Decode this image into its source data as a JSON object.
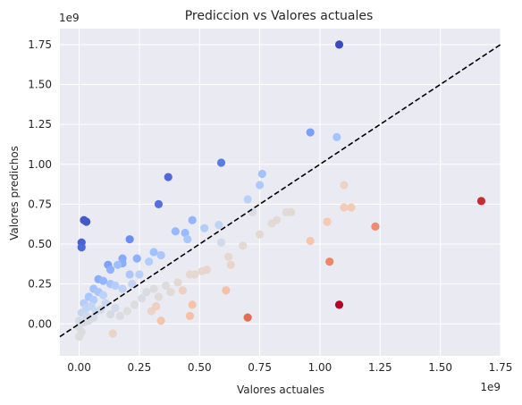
{
  "chart_data": {
    "type": "scatter",
    "title": "Prediccion vs Valores actuales",
    "xlabel": "Valores actuales",
    "ylabel": "Valores predichos",
    "x_offset_text": "1e9",
    "y_offset_text": "1e9",
    "xlim": [
      -0.08,
      1.75
    ],
    "ylim": [
      -0.2,
      1.85
    ],
    "xticks": [
      0,
      0.25,
      0.5,
      0.75,
      1.0,
      1.25,
      1.5,
      1.75
    ],
    "xtick_labels": [
      "0.00",
      "0.25",
      "0.50",
      "0.75",
      "1.00",
      "1.25",
      "1.50",
      "1.75"
    ],
    "yticks": [
      0,
      0.25,
      0.5,
      0.75,
      1.0,
      1.25,
      1.5,
      1.75
    ],
    "ytick_labels": [
      "0.00",
      "0.25",
      "0.50",
      "0.75",
      "1.00",
      "1.25",
      "1.50",
      "1.75"
    ],
    "grid": true,
    "background": "#eaeaf2",
    "reference_line": {
      "style": "dashed",
      "color": "#000000",
      "slope": 1,
      "intercept": 0
    },
    "colormap": "coolwarm",
    "color_by": "residual",
    "points": [
      {
        "x": 1.08,
        "y": 1.75,
        "c": "#3b4cc0"
      },
      {
        "x": 0.96,
        "y": 1.2,
        "c": "#7b9ff9"
      },
      {
        "x": 1.07,
        "y": 1.17,
        "c": "#a5c3fe"
      },
      {
        "x": 0.59,
        "y": 1.01,
        "c": "#5b7ae5"
      },
      {
        "x": 0.37,
        "y": 0.92,
        "c": "#4f69d9"
      },
      {
        "x": 0.76,
        "y": 0.94,
        "c": "#a2c1ff"
      },
      {
        "x": 0.75,
        "y": 0.87,
        "c": "#aec9fc"
      },
      {
        "x": 0.7,
        "y": 0.78,
        "c": "#b9d0f9"
      },
      {
        "x": 0.33,
        "y": 0.75,
        "c": "#5470de"
      },
      {
        "x": 0.02,
        "y": 0.65,
        "c": "#4358cb"
      },
      {
        "x": 0.03,
        "y": 0.64,
        "c": "#4358cb"
      },
      {
        "x": 0.01,
        "y": 0.51,
        "c": "#4961d2"
      },
      {
        "x": 0.01,
        "y": 0.48,
        "c": "#4f69d9"
      },
      {
        "x": 0.47,
        "y": 0.65,
        "c": "#93b5fe"
      },
      {
        "x": 0.4,
        "y": 0.58,
        "c": "#97b8ff"
      },
      {
        "x": 0.44,
        "y": 0.57,
        "c": "#9abbff"
      },
      {
        "x": 0.45,
        "y": 0.53,
        "c": "#aac7fd"
      },
      {
        "x": 0.52,
        "y": 0.6,
        "c": "#b3cdfb"
      },
      {
        "x": 0.58,
        "y": 0.62,
        "c": "#c0d4f5"
      },
      {
        "x": 0.59,
        "y": 0.51,
        "c": "#d1dae9"
      },
      {
        "x": 0.21,
        "y": 0.53,
        "c": "#6a8bef"
      },
      {
        "x": 0.24,
        "y": 0.41,
        "c": "#8caffe"
      },
      {
        "x": 0.18,
        "y": 0.41,
        "c": "#86a9fc"
      },
      {
        "x": 0.18,
        "y": 0.38,
        "c": "#8badfd"
      },
      {
        "x": 0.16,
        "y": 0.37,
        "c": "#9ebeff"
      },
      {
        "x": 0.12,
        "y": 0.37,
        "c": "#7da0f9"
      },
      {
        "x": 0.13,
        "y": 0.34,
        "c": "#8fb1fe"
      },
      {
        "x": 0.31,
        "y": 0.45,
        "c": "#a1c0ff"
      },
      {
        "x": 0.34,
        "y": 0.43,
        "c": "#aac7fd"
      },
      {
        "x": 0.29,
        "y": 0.39,
        "c": "#b2ccfb"
      },
      {
        "x": 0.21,
        "y": 0.31,
        "c": "#a9c6fd"
      },
      {
        "x": 0.25,
        "y": 0.31,
        "c": "#b7cff9"
      },
      {
        "x": 0.08,
        "y": 0.28,
        "c": "#89acfd"
      },
      {
        "x": 0.1,
        "y": 0.27,
        "c": "#94b6ff"
      },
      {
        "x": 0.13,
        "y": 0.25,
        "c": "#a6c4fe"
      },
      {
        "x": 0.06,
        "y": 0.22,
        "c": "#a3c2fe"
      },
      {
        "x": 0.08,
        "y": 0.2,
        "c": "#a9c6fd"
      },
      {
        "x": 0.15,
        "y": 0.24,
        "c": "#b5cdfa"
      },
      {
        "x": 0.18,
        "y": 0.22,
        "c": "#bed2f6"
      },
      {
        "x": 0.22,
        "y": 0.25,
        "c": "#c4d5f3"
      },
      {
        "x": 0.04,
        "y": 0.17,
        "c": "#a7c5fe"
      },
      {
        "x": 0.06,
        "y": 0.15,
        "c": "#b3cdfb"
      },
      {
        "x": 0.1,
        "y": 0.18,
        "c": "#bcd2f7"
      },
      {
        "x": 0.11,
        "y": 0.13,
        "c": "#c9d7f0"
      },
      {
        "x": 0.02,
        "y": 0.13,
        "c": "#b5cdfa"
      },
      {
        "x": 0.03,
        "y": 0.1,
        "c": "#c0d4f5"
      },
      {
        "x": 0.05,
        "y": 0.11,
        "c": "#c3d5f4"
      },
      {
        "x": 0.07,
        "y": 0.08,
        "c": "#ccd9ed"
      },
      {
        "x": 0.09,
        "y": 0.09,
        "c": "#cfdaea"
      },
      {
        "x": 0.01,
        "y": 0.07,
        "c": "#c6d6f1"
      },
      {
        "x": 0.03,
        "y": 0.05,
        "c": "#cedaeb"
      },
      {
        "x": 0.06,
        "y": 0.04,
        "c": "#d4dbe6"
      },
      {
        "x": 0.0,
        "y": 0.02,
        "c": "#d2dbe8"
      },
      {
        "x": 0.02,
        "y": 0.01,
        "c": "#d5dbe5"
      },
      {
        "x": 0.04,
        "y": 0.02,
        "c": "#d7dce3"
      },
      {
        "x": 0.0,
        "y": -0.02,
        "c": "#d9dce1"
      },
      {
        "x": 0.01,
        "y": -0.05,
        "c": "#dadce0"
      },
      {
        "x": 0.0,
        "y": -0.08,
        "c": "#dcdddd"
      },
      {
        "x": 0.13,
        "y": 0.06,
        "c": "#d5dbe5"
      },
      {
        "x": 0.15,
        "y": 0.1,
        "c": "#d2dbe8"
      },
      {
        "x": 0.17,
        "y": 0.05,
        "c": "#dadce0"
      },
      {
        "x": 0.2,
        "y": 0.08,
        "c": "#dcdddd"
      },
      {
        "x": 0.23,
        "y": 0.12,
        "c": "#dbdcde"
      },
      {
        "x": 0.26,
        "y": 0.16,
        "c": "#d9dce1"
      },
      {
        "x": 0.28,
        "y": 0.2,
        "c": "#d7dce3"
      },
      {
        "x": 0.31,
        "y": 0.22,
        "c": "#dddcdc"
      },
      {
        "x": 0.33,
        "y": 0.17,
        "c": "#e0dbd8"
      },
      {
        "x": 0.36,
        "y": 0.24,
        "c": "#dedcdb"
      },
      {
        "x": 0.38,
        "y": 0.2,
        "c": "#e2dad5"
      },
      {
        "x": 0.41,
        "y": 0.26,
        "c": "#e3d9d3"
      },
      {
        "x": 0.14,
        "y": -0.06,
        "c": "#ebd3c6"
      },
      {
        "x": 0.3,
        "y": 0.08,
        "c": "#ecd3c5"
      },
      {
        "x": 0.32,
        "y": 0.11,
        "c": "#eed0c0"
      },
      {
        "x": 0.34,
        "y": 0.02,
        "c": "#f4c5ad"
      },
      {
        "x": 0.43,
        "y": 0.21,
        "c": "#efcfbf"
      },
      {
        "x": 0.46,
        "y": 0.31,
        "c": "#e5d8d1"
      },
      {
        "x": 0.48,
        "y": 0.31,
        "c": "#e6d7cf"
      },
      {
        "x": 0.51,
        "y": 0.33,
        "c": "#e7d7ce"
      },
      {
        "x": 0.53,
        "y": 0.34,
        "c": "#e8d6cc"
      },
      {
        "x": 0.47,
        "y": 0.12,
        "c": "#f5c2aa"
      },
      {
        "x": 0.46,
        "y": 0.05,
        "c": "#f6bfa6"
      },
      {
        "x": 0.61,
        "y": 0.21,
        "c": "#f5c0a7"
      },
      {
        "x": 0.63,
        "y": 0.37,
        "c": "#ead5c9"
      },
      {
        "x": 0.62,
        "y": 0.42,
        "c": "#e7d7ce"
      },
      {
        "x": 0.68,
        "y": 0.49,
        "c": "#e4d9d2"
      },
      {
        "x": 0.72,
        "y": 0.7,
        "c": "#d9dce1"
      },
      {
        "x": 0.75,
        "y": 0.56,
        "c": "#e6d7cf"
      },
      {
        "x": 0.8,
        "y": 0.63,
        "c": "#e2dad5"
      },
      {
        "x": 0.82,
        "y": 0.65,
        "c": "#e3d9d3"
      },
      {
        "x": 0.86,
        "y": 0.7,
        "c": "#e1dad6"
      },
      {
        "x": 0.88,
        "y": 0.7,
        "c": "#e3d9d3"
      },
      {
        "x": 0.96,
        "y": 0.52,
        "c": "#f4c6af"
      },
      {
        "x": 1.03,
        "y": 0.64,
        "c": "#f2cab5"
      },
      {
        "x": 1.1,
        "y": 0.87,
        "c": "#ecd3c5"
      },
      {
        "x": 1.1,
        "y": 0.73,
        "c": "#f1ccb8"
      },
      {
        "x": 1.13,
        "y": 0.73,
        "c": "#f2cbb7"
      },
      {
        "x": 1.04,
        "y": 0.39,
        "c": "#ee8468"
      },
      {
        "x": 0.7,
        "y": 0.04,
        "c": "#e36c55"
      },
      {
        "x": 1.08,
        "y": 0.12,
        "c": "#b40426"
      },
      {
        "x": 1.23,
        "y": 0.61,
        "c": "#f08b6e"
      },
      {
        "x": 1.67,
        "y": 0.77,
        "c": "#c32e31"
      }
    ]
  }
}
